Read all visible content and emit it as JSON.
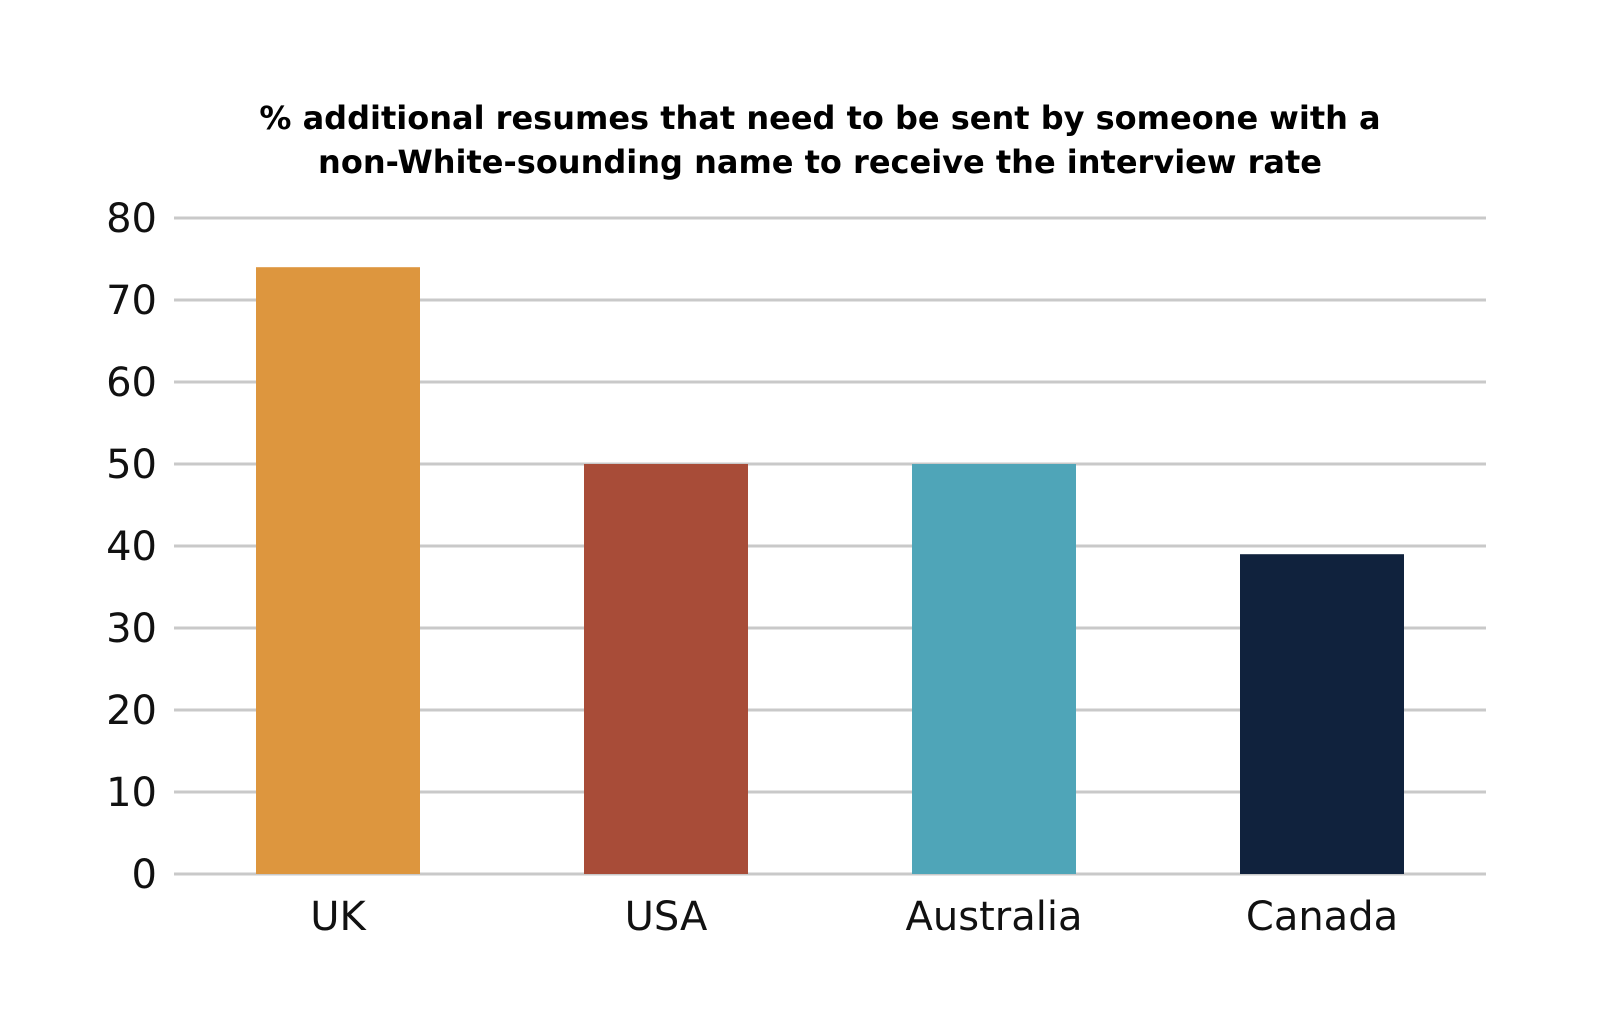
{
  "chart_data": {
    "type": "bar",
    "title_lines": [
      "% additional resumes that need to be sent by someone with a",
      "non-White-sounding name to receive the interview rate"
    ],
    "categories": [
      "UK",
      "USA",
      "Australia",
      "Canada"
    ],
    "values": [
      74,
      50,
      50,
      39
    ],
    "colors": [
      "#DD963E",
      "#A84C38",
      "#4FA5B8",
      "#10223D"
    ],
    "ylim": [
      0,
      80
    ],
    "yticks": [
      0,
      10,
      20,
      30,
      40,
      50,
      60,
      70,
      80
    ],
    "xlabel": "",
    "ylabel": "",
    "grid": true,
    "grid_color": "#C9C9C9",
    "legend": "none"
  }
}
